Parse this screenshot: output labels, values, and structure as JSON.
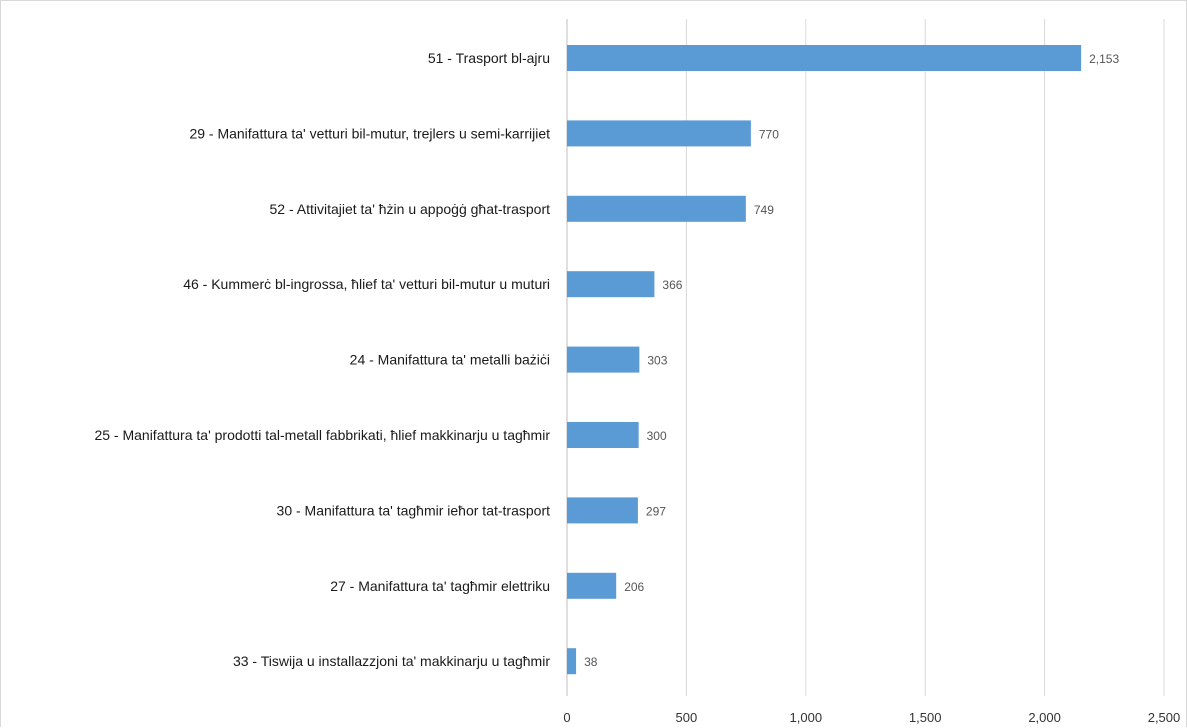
{
  "chart_data": {
    "type": "bar",
    "orientation": "horizontal",
    "categories": [
      "51 - Trasport bl-ajru",
      "29 - Manifattura ta' vetturi bil-mutur, trejlers u semi-karrijiet",
      "52 - Attivitajiet ta' ħżin u appoġġ għat-trasport",
      "46 -  Kummerċ bl-ingrossa, ħlief ta' vetturi bil-mutur u muturi",
      "24 -  Manifattura ta' metalli bażiċi",
      "25 - Manifattura ta' prodotti tal-metall fabbrikati, ħlief makkinarju u tagħmir",
      "30 - Manifattura ta' tagħmir ieħor tat-trasport",
      "27 - Manifattura ta' tagħmir elettriku",
      "33 - Tiswija u installazzjoni ta' makkinarju u tagħmir"
    ],
    "values": [
      2153,
      770,
      749,
      366,
      303,
      300,
      297,
      206,
      38
    ],
    "data_labels": [
      "2,153",
      "770",
      "749",
      "366",
      "303",
      "300",
      "297",
      "206",
      "38"
    ],
    "xlim": [
      0,
      2500
    ],
    "x_ticks": [
      0,
      500,
      1000,
      1500,
      2000,
      2500
    ],
    "x_tick_labels": [
      "0",
      "500",
      "1,000",
      "1,500",
      "2,000",
      "2,500"
    ],
    "grid": "vertical",
    "bar_color": "#5b9bd5",
    "title": "",
    "xlabel": "",
    "ylabel": ""
  }
}
